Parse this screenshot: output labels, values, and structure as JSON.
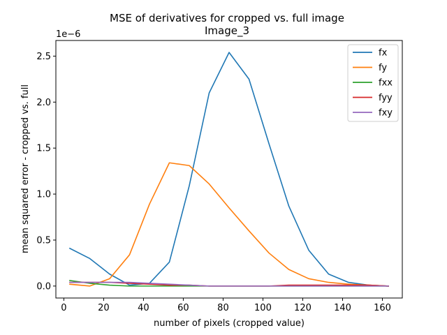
{
  "chart_data": {
    "type": "line",
    "title": "MSE of derivatives for cropped vs. full image",
    "subtitle": "Image_3",
    "xlabel": "number of pixels (cropped value)",
    "ylabel": "mean squared error - cropped vs. full",
    "offset_text": "1e−6",
    "xlim": [
      -4,
      170
    ],
    "ylim": [
      -0.13,
      2.67
    ],
    "xticks": [
      0,
      20,
      40,
      60,
      80,
      100,
      120,
      140,
      160
    ],
    "xtick_labels": [
      "0",
      "20",
      "40",
      "60",
      "80",
      "100",
      "120",
      "140",
      "160"
    ],
    "yticks": [
      0.0,
      0.5,
      1.0,
      1.5,
      2.0,
      2.5
    ],
    "ytick_labels": [
      "0.0",
      "0.5",
      "1.0",
      "1.5",
      "2.0",
      "2.5"
    ],
    "legend_position": "top-right",
    "x": [
      3,
      13,
      23,
      33,
      43,
      53,
      63,
      73,
      83,
      93,
      103,
      113,
      123,
      133,
      143,
      153,
      163
    ],
    "series": [
      {
        "name": "fx",
        "color": "#1f77b4",
        "values": [
          0.41,
          0.3,
          0.13,
          0.01,
          0.03,
          0.26,
          1.09,
          2.1,
          2.54,
          2.25,
          1.55,
          0.87,
          0.39,
          0.13,
          0.04,
          0.01,
          0.0
        ]
      },
      {
        "name": "fy",
        "color": "#ff7f0e",
        "values": [
          0.02,
          0.0,
          0.08,
          0.34,
          0.89,
          1.34,
          1.31,
          1.11,
          0.85,
          0.6,
          0.36,
          0.18,
          0.08,
          0.04,
          0.02,
          0.01,
          0.0
        ]
      },
      {
        "name": "fxx",
        "color": "#2ca02c",
        "values": [
          0.06,
          0.03,
          0.01,
          0.0,
          0.0,
          0.0,
          0.0,
          0.0,
          0.0,
          0.0,
          0.0,
          0.0,
          0.0,
          0.0,
          0.0,
          0.0,
          0.0
        ]
      },
      {
        "name": "fyy",
        "color": "#d62728",
        "values": [
          0.04,
          0.04,
          0.04,
          0.03,
          0.02,
          0.01,
          0.01,
          0.0,
          0.0,
          0.0,
          0.0,
          0.01,
          0.01,
          0.01,
          0.01,
          0.01,
          0.0
        ]
      },
      {
        "name": "fxy",
        "color": "#9467bd",
        "values": [
          0.04,
          0.04,
          0.04,
          0.04,
          0.03,
          0.02,
          0.01,
          0.0,
          0.0,
          0.0,
          0.0,
          0.0,
          0.0,
          0.0,
          0.0,
          0.0,
          0.0
        ]
      }
    ]
  }
}
